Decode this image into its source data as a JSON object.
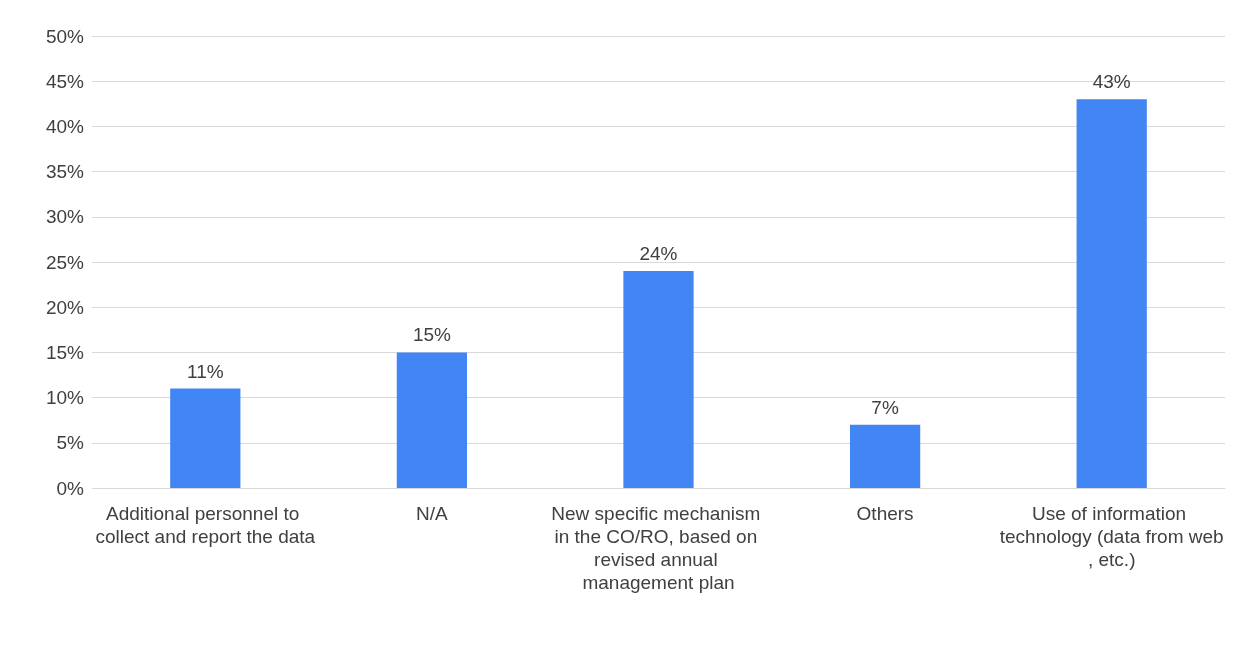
{
  "chart_data": {
    "type": "bar",
    "categories": [
      "Additional personnel to collect and report the data",
      "N/A",
      "New specific mechanism in the CO/RO, based on revised annual management plan",
      "Others",
      "Use of information technology (data from web, etc.)"
    ],
    "values": [
      11,
      15,
      24,
      7,
      43
    ],
    "value_labels": [
      "11%",
      "15%",
      "24%",
      "7%",
      "43%"
    ],
    "color": "#4285f4",
    "ylim": [
      0,
      50
    ],
    "yticks": [
      {
        "value": 0,
        "label": "0%"
      },
      {
        "value": 5,
        "label": "5%"
      },
      {
        "value": 10,
        "label": "10%"
      },
      {
        "value": 15,
        "label": "15%"
      },
      {
        "value": 20,
        "label": "20%"
      },
      {
        "value": 25,
        "label": "25%"
      },
      {
        "value": 30,
        "label": "30%"
      },
      {
        "value": 35,
        "label": "35%"
      },
      {
        "value": 40,
        "label": "40%"
      },
      {
        "value": 45,
        "label": "45%"
      },
      {
        "value": 50,
        "label": "50%"
      }
    ],
    "grid": "y"
  }
}
